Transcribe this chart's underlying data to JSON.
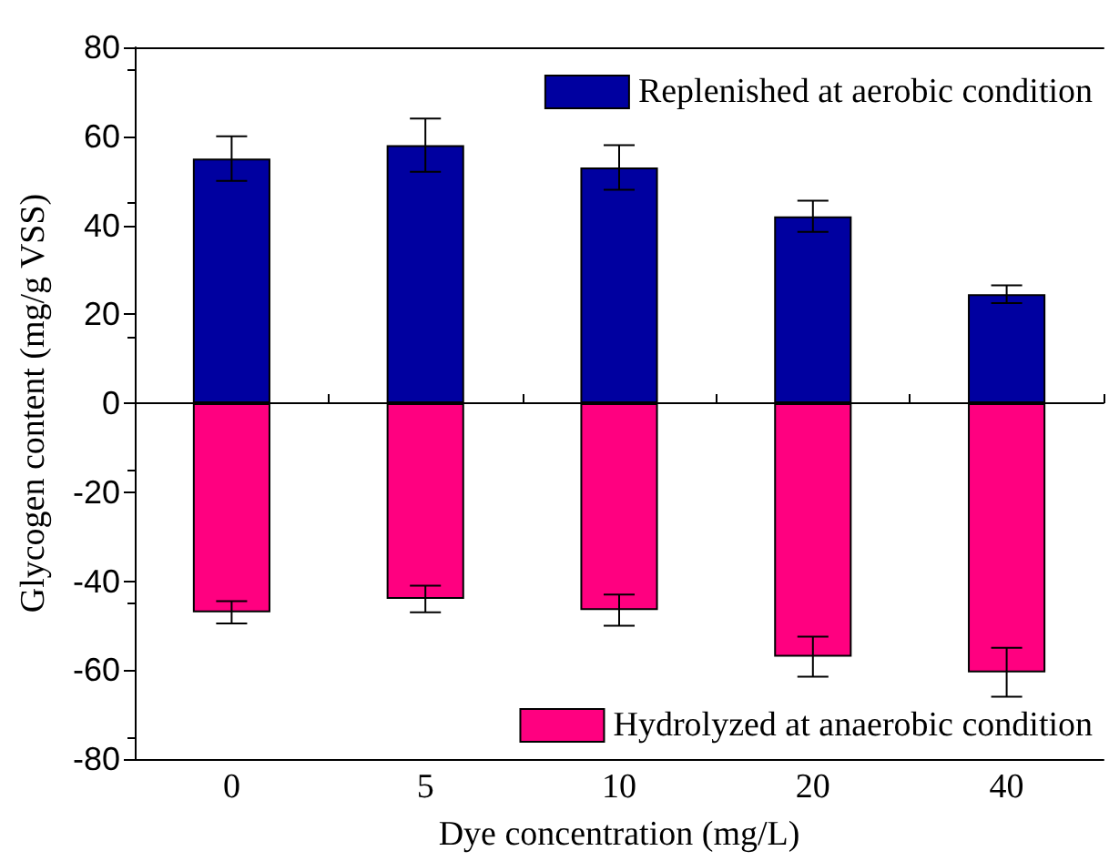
{
  "chart_data": {
    "type": "bar",
    "xlabel": "Dye concentration (mg/L)",
    "ylabel": "Glycogen content (mg/g VSS)",
    "categories": [
      "0",
      "5",
      "10",
      "20",
      "40"
    ],
    "series": [
      {
        "name": "Replenished at aerobic condition",
        "color": "#0000a0",
        "values": [
          55,
          58,
          53,
          42,
          24.5
        ],
        "errors": [
          5,
          6,
          5,
          3.5,
          2
        ]
      },
      {
        "name": "Hydrolyzed at anaerobic condition",
        "color": "#ff0080",
        "values": [
          -47,
          -44,
          -46.5,
          -57,
          -60.5
        ],
        "errors": [
          2.5,
          3,
          3.5,
          4.5,
          5.5
        ]
      }
    ],
    "ylim": [
      -80,
      80
    ],
    "yticks": [
      -80,
      -60,
      -40,
      -20,
      0,
      20,
      40,
      60,
      80
    ],
    "stacked": true,
    "legend": "right"
  }
}
